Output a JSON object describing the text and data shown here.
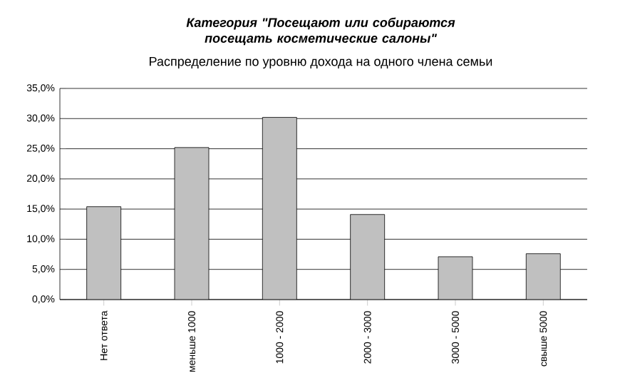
{
  "chart_data": {
    "type": "bar",
    "title": "Категория \"Посещают или собираются посещать косметические салоны\"",
    "subtitle": "Распределение по уровню дохода на одного члена семьи",
    "categories": [
      "Нет ответа",
      "меньше 1000",
      "1000 - 2000",
      "2000 - 3000",
      "3000 - 5000",
      "свыше 5000"
    ],
    "values": [
      15.4,
      25.2,
      30.2,
      14.1,
      7.1,
      7.6
    ],
    "color": "#c0c0c0",
    "ylim": [
      0,
      35
    ],
    "yticks": [
      {
        "value": 0,
        "label": "0,0%"
      },
      {
        "value": 5,
        "label": "5,0%"
      },
      {
        "value": 10,
        "label": "10,0%"
      },
      {
        "value": 15,
        "label": "15,0%"
      },
      {
        "value": 20,
        "label": "20,0%"
      },
      {
        "value": 25,
        "label": "25,0%"
      },
      {
        "value": 30,
        "label": "30,0%"
      },
      {
        "value": 35,
        "label": "35,0%"
      }
    ],
    "grid": "y"
  }
}
